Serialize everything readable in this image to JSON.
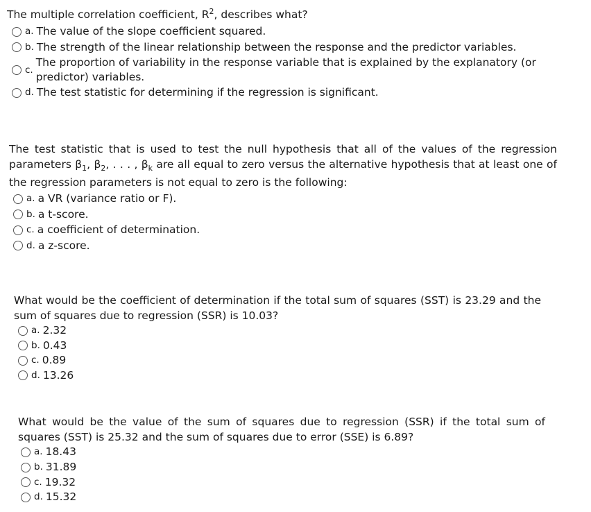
{
  "questions": [
    {
      "stem_before": "The multiple correlation coefficient, R",
      "stem_sup": "2",
      "stem_after": ", describes what?",
      "options": [
        {
          "letter": "a.",
          "text": "The value of the slope coefficient squared."
        },
        {
          "letter": "b.",
          "text": "The strength of the linear relationship between the response and the predictor variables."
        },
        {
          "letter": "c.",
          "text": "The proportion of variability in the response variable that is explained by the explanatory (or predictor) variables."
        },
        {
          "letter": "d.",
          "text": "The test statistic for determining if the regression is significant."
        }
      ]
    },
    {
      "stem_1": "The test statistic that is used to test the null hypothesis that all of the values of the regression parameters β",
      "sub_1": "1",
      "stem_2": ", β",
      "sub_2": "2",
      "stem_3": ", . . . , β",
      "sub_3": "k",
      "stem_4": " are all equal to zero versus the alternative hypothesis that at least one of the regression parameters is not equal to zero is the following:",
      "options": [
        {
          "letter": "a.",
          "text": "a VR (variance ratio or F)."
        },
        {
          "letter": "b.",
          "text": "a t-score."
        },
        {
          "letter": "c.",
          "text": "a coefficient of determination."
        },
        {
          "letter": "d.",
          "text": "a z-score."
        }
      ]
    },
    {
      "stem": "What would be the coefficient of determination if the total sum of squares (SST) is 23.29 and the sum of squares due to regression (SSR) is 10.03?",
      "options": [
        {
          "letter": "a.",
          "text": "2.32"
        },
        {
          "letter": "b.",
          "text": "0.43"
        },
        {
          "letter": "c.",
          "text": "0.89"
        },
        {
          "letter": "d.",
          "text": "13.26"
        }
      ]
    },
    {
      "stem": "What would be the value of the sum of squares due to regression (SSR) if the total sum of squares (SST) is 25.32 and the sum of squares due to error (SSE) is 6.89?",
      "options": [
        {
          "letter": "a.",
          "text": "18.43"
        },
        {
          "letter": "b.",
          "text": "31.89"
        },
        {
          "letter": "c.",
          "text": "19.32"
        },
        {
          "letter": "d.",
          "text": "15.32"
        }
      ]
    }
  ]
}
